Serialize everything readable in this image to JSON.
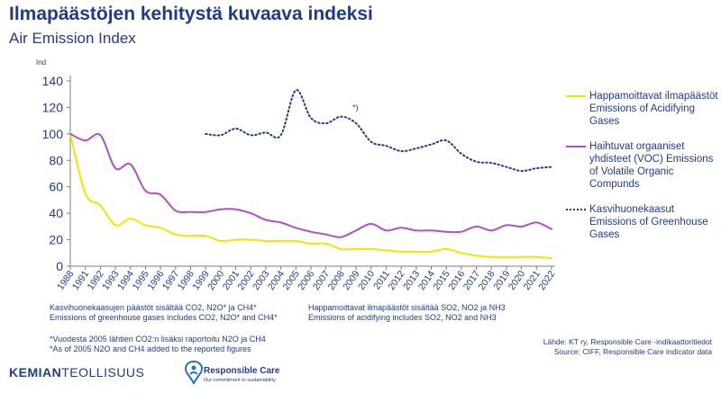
{
  "header": {
    "title": "Ilmapäästöjen kehitystä kuvaava indeksi",
    "subtitle": "Air Emission Index"
  },
  "chart_data": {
    "type": "line",
    "unit_label": "Ind",
    "ylim": [
      0,
      140
    ],
    "yticks": [
      0,
      20,
      40,
      60,
      80,
      100,
      120,
      140
    ],
    "grid": false,
    "legend_position": "right",
    "categories": [
      "1988",
      "1991",
      "1992",
      "1993",
      "1994",
      "1995",
      "1996",
      "1997",
      "1998",
      "1999",
      "2000",
      "2001",
      "2002",
      "2003",
      "2004",
      "2005",
      "2006",
      "2007",
      "2008",
      "2009",
      "2010",
      "2011",
      "2012",
      "2013",
      "2014",
      "2015",
      "2016",
      "2017",
      "2018",
      "2019",
      "2020",
      "2021",
      "2022"
    ],
    "series": [
      {
        "name": "Happamoittavat ilmapäästöt Emissions of Acidifying Gases",
        "color": "#f2e600",
        "dash": "solid",
        "values": [
          100,
          55,
          46,
          31,
          36,
          31,
          29,
          24,
          23,
          23,
          19,
          20,
          20,
          19,
          19,
          19,
          17,
          17,
          13,
          13,
          13,
          12,
          11,
          11,
          11,
          13,
          10,
          8,
          7,
          7,
          7,
          7,
          6
        ]
      },
      {
        "name": "Haihtuvat orgaaniset yhdisteet (VOC) Emissions of Volatile Organic Compunds",
        "color": "#b150c5",
        "dash": "solid",
        "values": [
          100,
          95,
          99,
          74,
          77,
          57,
          54,
          42,
          41,
          41,
          43,
          43,
          40,
          35,
          33,
          29,
          26,
          24,
          22,
          27,
          32,
          27,
          29,
          27,
          27,
          26,
          26,
          30,
          27,
          31,
          30,
          33,
          28
        ]
      },
      {
        "name": "Kasvihuonekaasut Emissions of Greenhouse Gases",
        "color": "#1f3c88",
        "dash": "dotted",
        "values": [
          null,
          null,
          null,
          null,
          null,
          null,
          null,
          null,
          null,
          100,
          99,
          104,
          99,
          101,
          99,
          133,
          112,
          108,
          113,
          108,
          94,
          91,
          87,
          89,
          92,
          95,
          85,
          79,
          78,
          75,
          72,
          74,
          75
        ]
      }
    ],
    "annotations": [
      {
        "text": "*)",
        "x": "2009",
        "y": 118
      }
    ]
  },
  "notes": {
    "ghg_fi": "Kasvihuonekaasujen päästöt sisältää CO2, N2O* ja CH4*",
    "ghg_en": "Emissions of greenhouse gases includes CO2, N2O* and CH4*",
    "acid_fi": "Happamoittavat ilmapäästöt sisältää SO2, NO2 ja NH3",
    "acid_en": "Emissions of acidifying includes SO2, NO2 and NH3",
    "foot_fi": "*Vuodesta 2005 lähtien CO2:n lisäksi raportoitu N2O ja CH4",
    "foot_en": "*As of 2005 N2O and CH4 added to the reported figures"
  },
  "source": {
    "fi": "Lähde: KT ry, Responsible Care -indikaattoritiedot",
    "en": "Source: CIFF, Responsible Care indicator data"
  },
  "branding": {
    "brand_bold": "KEMIAN",
    "brand_light": "TEOLLISUUS",
    "rc_name": "Responsible Care",
    "rc_tagline": "Our commitment to sustainability"
  },
  "colors": {
    "primary": "#1f3c88",
    "axis": "#7f7f7f"
  }
}
